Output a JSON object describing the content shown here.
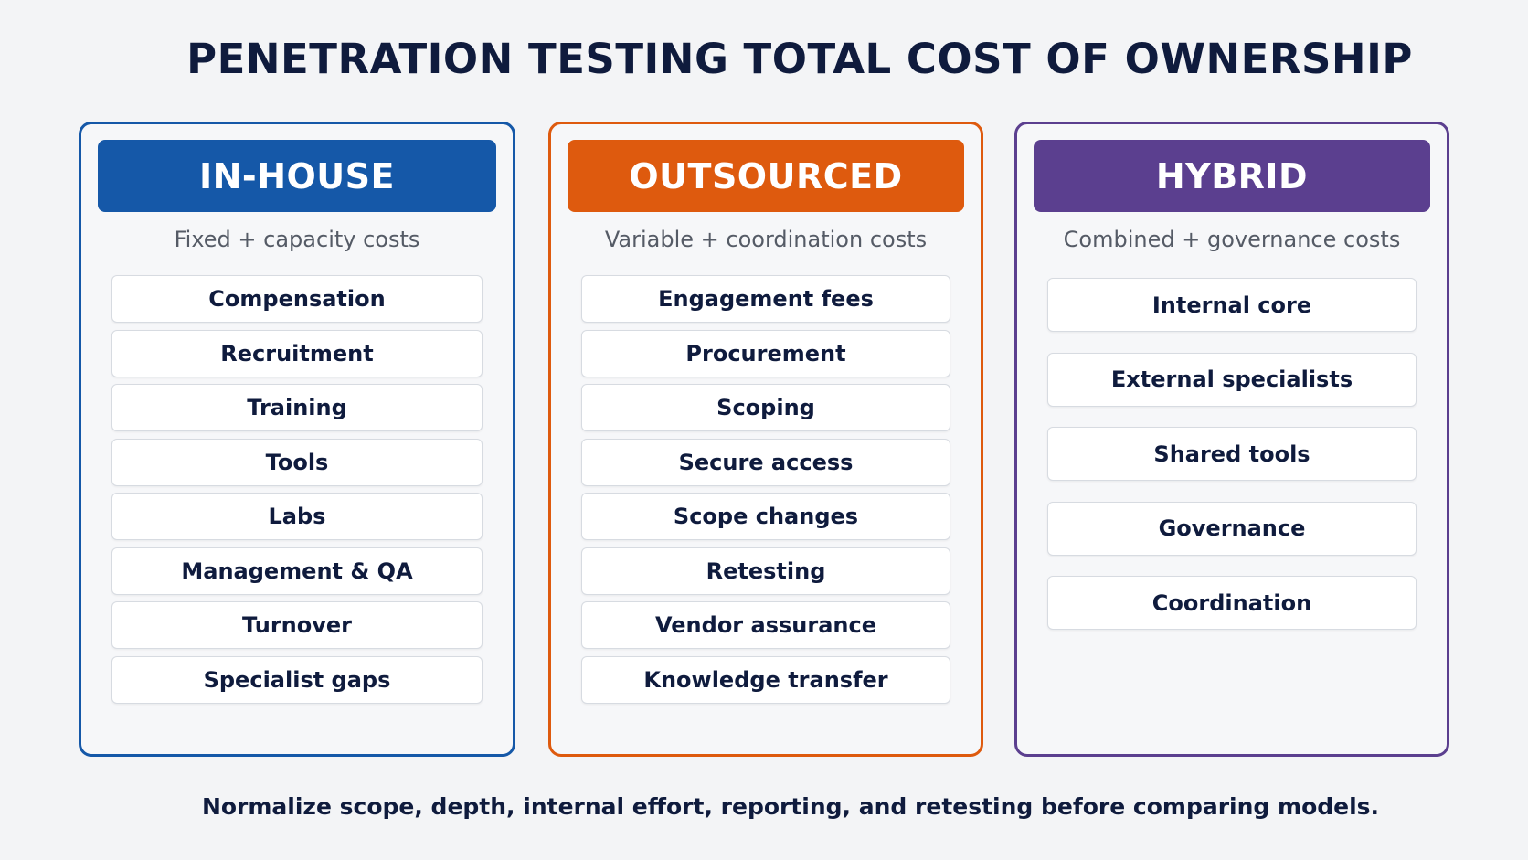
{
  "title": "PENETRATION TESTING TOTAL COST OF OWNERSHIP",
  "columns": [
    {
      "heading": "IN-HOUSE",
      "subtitle": "Fixed + capacity costs",
      "color": "#1558a8",
      "items": [
        "Compensation",
        "Recruitment",
        "Training",
        "Tools",
        "Labs",
        "Management & QA",
        "Turnover",
        "Specialist gaps"
      ]
    },
    {
      "heading": "OUTSOURCED",
      "subtitle": "Variable + coordination costs",
      "color": "#de5a0e",
      "items": [
        "Engagement fees",
        "Procurement",
        "Scoping",
        "Secure access",
        "Scope changes",
        "Retesting",
        "Vendor assurance",
        "Knowledge transfer"
      ]
    },
    {
      "heading": "HYBRID",
      "subtitle": "Combined + governance costs",
      "color": "#5b3f8f",
      "items": [
        "Internal core",
        "External specialists",
        "Shared tools",
        "Governance",
        "Coordination"
      ]
    }
  ],
  "footer": "Normalize scope, depth, internal effort, reporting, and retesting before comparing models."
}
